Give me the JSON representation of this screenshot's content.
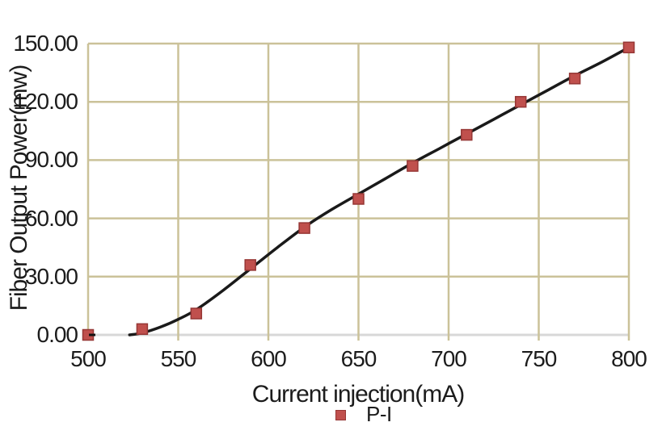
{
  "chart_data": {
    "type": "scatter",
    "title": "",
    "xlabel": "Current injection(mA)",
    "ylabel": "Fiber Output Power(mw)",
    "xlim": [
      500,
      800
    ],
    "ylim": [
      0,
      150
    ],
    "x_ticks": [
      "500",
      "550",
      "600",
      "650",
      "700",
      "750",
      "800"
    ],
    "y_ticks": [
      "0.00",
      "30.00",
      "60.00",
      "90.00",
      "120.00",
      "150.00"
    ],
    "grid": true,
    "legend_position": "bottom-center",
    "legend": [
      {
        "label": "P-I",
        "marker": "square",
        "color": "#c0504d"
      }
    ],
    "series": [
      {
        "name": "P-I",
        "type": "scatter",
        "marker": "square",
        "marker_size": 13,
        "color": "#c0504d",
        "edge_color": "#963735",
        "x": [
          500,
          530,
          560,
          590,
          620,
          650,
          680,
          710,
          740,
          770,
          800
        ],
        "y": [
          0,
          3,
          11,
          36,
          55,
          70,
          87,
          103,
          120,
          132,
          148
        ]
      },
      {
        "name": "fit-curve",
        "type": "line",
        "color": "#1a1a1a",
        "width": 3.5,
        "x": [
          523,
          530,
          540,
          550,
          560,
          575,
          590,
          605,
          620,
          635,
          650,
          665,
          680,
          695,
          710,
          725,
          740,
          755,
          770,
          785,
          800
        ],
        "y": [
          0,
          1,
          4,
          8,
          13,
          23,
          34,
          45,
          55.5,
          64.5,
          72.5,
          80.5,
          88.5,
          96,
          103.5,
          111,
          118.5,
          126,
          133.5,
          140.5,
          148
        ]
      }
    ],
    "annotations": [
      {
        "type": "dash",
        "x": 500,
        "y": 0,
        "color": "#111111"
      }
    ],
    "colors": {
      "grid": "#cbc299",
      "baseline": "#d8d8d8",
      "text": "#1c1c1c",
      "background": "#ffffff"
    }
  }
}
